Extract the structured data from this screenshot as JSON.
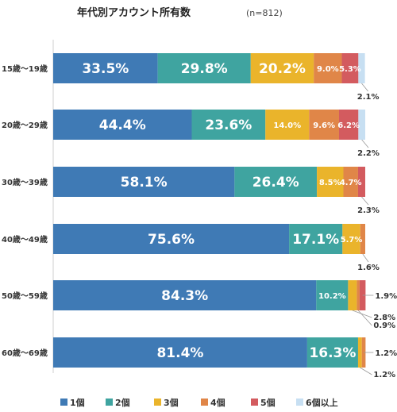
{
  "chart_data": {
    "type": "bar",
    "orientation": "horizontal",
    "stacked": true,
    "title": "年代別アカウント所有数",
    "subtitle": "(n=812)",
    "categories": [
      "15歳〜19歳",
      "20歳〜29歳",
      "30歳〜39歳",
      "40歳〜49歳",
      "50歳〜59歳",
      "60歳〜69歳"
    ],
    "series": [
      {
        "name": "1個",
        "color": "#3f7ab5",
        "values": [
          33.5,
          44.4,
          58.1,
          75.6,
          84.3,
          81.4
        ]
      },
      {
        "name": "2個",
        "color": "#3fa4a0",
        "values": [
          29.8,
          23.6,
          26.4,
          17.1,
          10.2,
          16.3
        ]
      },
      {
        "name": "3個",
        "color": "#eab42b",
        "values": [
          20.2,
          14.0,
          8.5,
          5.7,
          2.8,
          1.2
        ]
      },
      {
        "name": "4個",
        "color": "#e08648",
        "values": [
          9.0,
          9.6,
          4.7,
          1.6,
          0.9,
          1.2
        ]
      },
      {
        "name": "5個",
        "color": "#d35b5f",
        "values": [
          5.3,
          6.2,
          2.3,
          0,
          1.9,
          0
        ]
      },
      {
        "name": "6個以上",
        "color": "#c7dff2",
        "values": [
          2.1,
          2.2,
          0,
          0,
          0,
          0
        ]
      }
    ],
    "data_labels": [
      [
        "33.5%",
        "29.8%",
        "20.2%",
        "9.0%",
        "5.3%",
        "2.1%"
      ],
      [
        "44.4%",
        "23.6%",
        "14.0%",
        "9.6%",
        "6.2%",
        "2.2%"
      ],
      [
        "58.1%",
        "26.4%",
        "8.5%",
        "4.7%",
        "2.3%",
        ""
      ],
      [
        "75.6%",
        "17.1%",
        "5.7%",
        "1.6%",
        "",
        ""
      ],
      [
        "84.3%",
        "10.2%",
        "2.8%",
        "0.9%",
        "1.9%",
        ""
      ],
      [
        "81.4%",
        "16.3%",
        "1.2%",
        "1.2%",
        "",
        ""
      ]
    ],
    "xlim": [
      0,
      100
    ],
    "grid": false,
    "legend_position": "bottom"
  }
}
